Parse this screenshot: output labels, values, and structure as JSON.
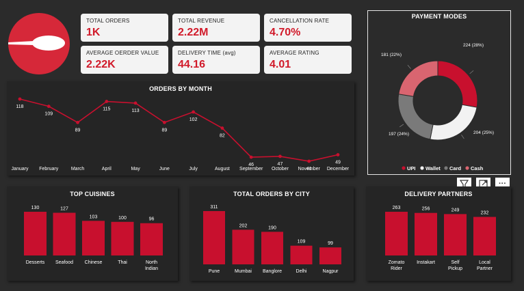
{
  "kpis": [
    {
      "label": "TOTAL ORDERS",
      "value": "1K"
    },
    {
      "label": "TOTAL REVENUE",
      "value": "2.22M"
    },
    {
      "label": "CANCELLATION RATE",
      "value": "4.70%"
    },
    {
      "label": "AVERAGE OERDER VALUE",
      "value": "2.22K"
    },
    {
      "label": "DELIVERY TIME (avg)",
      "value": "44.16"
    },
    {
      "label": "AVERAGE RATING",
      "value": "4.01"
    }
  ],
  "colors": {
    "accent": "#d11a2a",
    "line": "#c8102e",
    "bar": "#c8102e"
  },
  "toolbar": {
    "filter_icon": "filter-icon",
    "expand_icon": "focus-mode-icon",
    "more_label": "···"
  },
  "payment": {
    "title": "PAYMENT MODES",
    "chart_data": {
      "type": "pie",
      "labels": [
        "UPI",
        "Wallet",
        "Card",
        "Cash"
      ],
      "values": [
        224,
        204,
        197,
        181
      ],
      "data_labels": [
        "224 (28%)",
        "204 (25%)",
        "197 (24%)",
        "181 (22%)"
      ],
      "colors": [
        "#c8102e",
        "#f2f2f2",
        "#7a7a7a",
        "#d96570"
      ],
      "legend": "bottom"
    }
  },
  "orders_month": {
    "title": "ORDERS BY MONTH",
    "chart_data": {
      "type": "line",
      "categories": [
        "January",
        "February",
        "March",
        "April",
        "May",
        "June",
        "July",
        "August",
        "September",
        "October",
        "November",
        "December"
      ],
      "values": [
        118,
        109,
        89,
        115,
        113,
        89,
        102,
        82,
        46,
        47,
        41,
        49
      ]
    }
  },
  "cuisines": {
    "title": "TOP CUISINES",
    "chart_data": {
      "type": "bar",
      "categories": [
        "Desserts",
        "Seafood",
        "Chinese",
        "Thai",
        "North Indian"
      ],
      "values": [
        130,
        127,
        103,
        100,
        96
      ]
    }
  },
  "cities": {
    "title": "TOTAL ORDERS BY CITY",
    "chart_data": {
      "type": "bar",
      "categories": [
        "Pune",
        "Mumbai",
        "Banglore",
        "Delhi",
        "Nagpur"
      ],
      "values": [
        311,
        202,
        190,
        109,
        99
      ]
    }
  },
  "partners": {
    "title": "DELIVERY PARTNERS",
    "chart_data": {
      "type": "bar",
      "categories": [
        "Zomato Rider",
        "Instakart",
        "Self Pickup",
        "Local Partner"
      ],
      "values": [
        263,
        256,
        249,
        232
      ]
    }
  }
}
